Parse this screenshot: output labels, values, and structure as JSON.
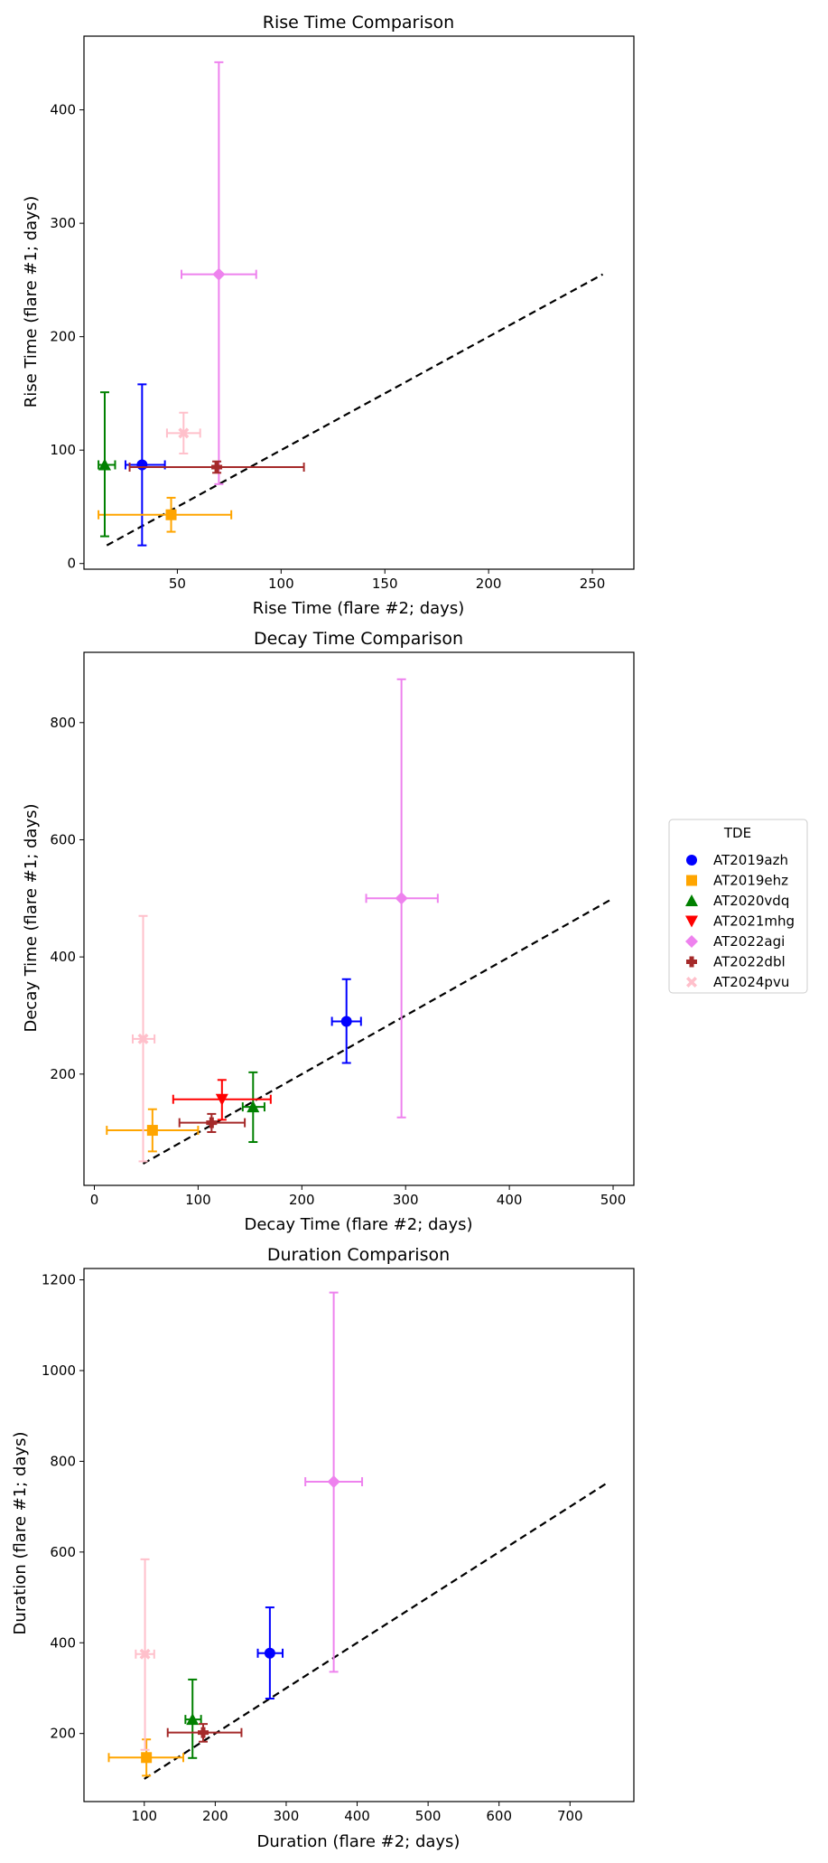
{
  "legend": {
    "title": "TDE",
    "entries": [
      {
        "name": "AT2019azh",
        "color": "#0000ff",
        "marker": "circle"
      },
      {
        "name": "AT2019ehz",
        "color": "#ffa500",
        "marker": "square"
      },
      {
        "name": "AT2020vdq",
        "color": "#008000",
        "marker": "triangle-up"
      },
      {
        "name": "AT2021mhg",
        "color": "#ff0000",
        "marker": "triangle-down"
      },
      {
        "name": "AT2022agi",
        "color": "#ee82ee",
        "marker": "diamond"
      },
      {
        "name": "AT2022dbl",
        "color": "#a52a2a",
        "marker": "plus"
      },
      {
        "name": "AT2024pvu",
        "color": "#ffc0cb",
        "marker": "x"
      }
    ]
  },
  "chart_data": [
    {
      "type": "scatter",
      "title": "Rise Time Comparison",
      "xlabel": "Rise Time (flare #2; days)",
      "ylabel": "Rise Time (flare #1; days)",
      "xlim": [
        5,
        270
      ],
      "ylim": [
        -5,
        465
      ],
      "xticks": [
        50,
        100,
        150,
        200,
        250
      ],
      "yticks": [
        0,
        100,
        200,
        300,
        400
      ],
      "diagonal": [
        16,
        255
      ],
      "points": [
        {
          "name": "AT2019azh",
          "x": 33,
          "xlo": 25,
          "xhi": 44,
          "y": 87,
          "ylo": 16,
          "yhi": 158
        },
        {
          "name": "AT2019ehz",
          "x": 47,
          "xlo": 12,
          "xhi": 76,
          "y": 43,
          "ylo": 28,
          "yhi": 58
        },
        {
          "name": "AT2020vdq",
          "x": 15,
          "xlo": 12,
          "xhi": 20,
          "y": 87,
          "ylo": 24,
          "yhi": 151
        },
        {
          "name": "AT2022agi",
          "x": 70,
          "xlo": 52,
          "xhi": 88,
          "y": 255,
          "ylo": 70,
          "yhi": 442
        },
        {
          "name": "AT2022dbl",
          "x": 69,
          "xlo": 27,
          "xhi": 111,
          "y": 85,
          "ylo": 80,
          "yhi": 90
        },
        {
          "name": "AT2024pvu",
          "x": 53,
          "xlo": 45,
          "xhi": 61,
          "y": 115,
          "ylo": 97,
          "yhi": 133
        }
      ]
    },
    {
      "type": "scatter",
      "title": "Decay Time Comparison",
      "xlabel": "Decay Time (flare #2; days)",
      "ylabel": "Decay Time (flare #1; days)",
      "xlim": [
        -10,
        520
      ],
      "ylim": [
        10,
        920
      ],
      "xticks": [
        0,
        100,
        200,
        300,
        400,
        500
      ],
      "yticks": [
        200,
        400,
        600,
        800
      ],
      "diagonal": [
        47,
        500
      ],
      "points": [
        {
          "name": "AT2019azh",
          "x": 243,
          "xlo": 229,
          "xhi": 257,
          "y": 290,
          "ylo": 219,
          "yhi": 362
        },
        {
          "name": "AT2019ehz",
          "x": 56,
          "xlo": 12,
          "xhi": 100,
          "y": 104,
          "ylo": 68,
          "yhi": 140
        },
        {
          "name": "AT2020vdq",
          "x": 153,
          "xlo": 143,
          "xhi": 164,
          "y": 144,
          "ylo": 84,
          "yhi": 203
        },
        {
          "name": "AT2021mhg",
          "x": 123,
          "xlo": 76,
          "xhi": 170,
          "y": 157,
          "ylo": 122,
          "yhi": 190
        },
        {
          "name": "AT2022agi",
          "x": 296,
          "xlo": 262,
          "xhi": 331,
          "y": 500,
          "ylo": 126,
          "yhi": 874
        },
        {
          "name": "AT2022dbl",
          "x": 113,
          "xlo": 82,
          "xhi": 145,
          "y": 117,
          "ylo": 101,
          "yhi": 132
        },
        {
          "name": "AT2024pvu",
          "x": 47,
          "xlo": 37,
          "xhi": 58,
          "y": 260,
          "ylo": 51,
          "yhi": 470
        }
      ]
    },
    {
      "type": "scatter",
      "title": "Duration Comparison",
      "xlabel": "Duration (flare #2; days)",
      "ylabel": "Duration (flare #1; days)",
      "xlim": [
        15,
        790
      ],
      "ylim": [
        50,
        1225
      ],
      "xticks": [
        100,
        200,
        300,
        400,
        500,
        600,
        700
      ],
      "yticks": [
        200,
        400,
        600,
        800,
        1000,
        1200
      ],
      "diagonal": [
        100,
        755
      ],
      "points": [
        {
          "name": "AT2019azh",
          "x": 277,
          "xlo": 260,
          "xhi": 295,
          "y": 377,
          "ylo": 277,
          "yhi": 478
        },
        {
          "name": "AT2019ehz",
          "x": 103,
          "xlo": 50,
          "xhi": 155,
          "y": 147,
          "ylo": 107,
          "yhi": 187
        },
        {
          "name": "AT2020vdq",
          "x": 168,
          "xlo": 158,
          "xhi": 180,
          "y": 231,
          "ylo": 146,
          "yhi": 319
        },
        {
          "name": "AT2022agi",
          "x": 367,
          "xlo": 327,
          "xhi": 407,
          "y": 755,
          "ylo": 336,
          "yhi": 1172
        },
        {
          "name": "AT2022dbl",
          "x": 183,
          "xlo": 133,
          "xhi": 237,
          "y": 202,
          "ylo": 182,
          "yhi": 221
        },
        {
          "name": "AT2024pvu",
          "x": 101,
          "xlo": 88,
          "xhi": 114,
          "y": 375,
          "ylo": 164,
          "yhi": 584
        }
      ]
    }
  ]
}
